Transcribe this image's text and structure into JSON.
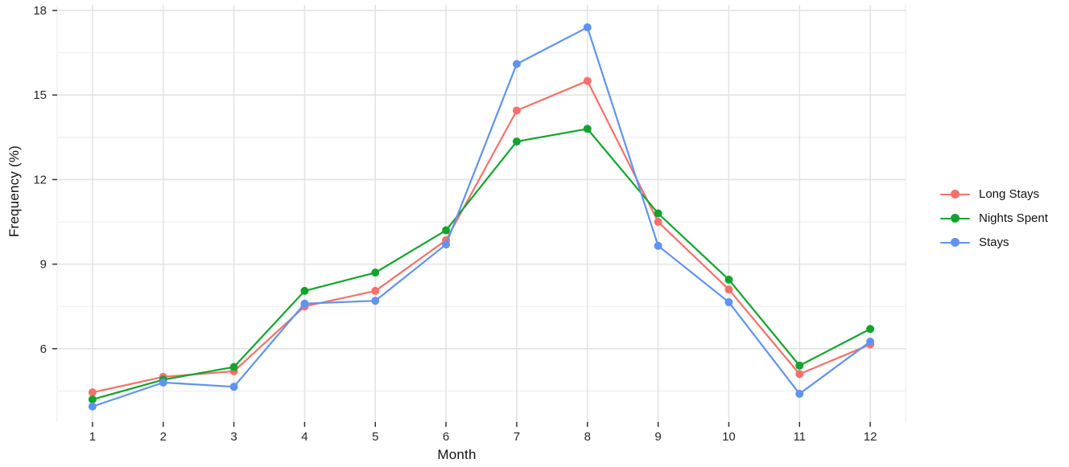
{
  "chart_data": {
    "type": "line",
    "title": "",
    "xlabel": "Month",
    "ylabel": "Frequency (%)",
    "x": [
      1,
      2,
      3,
      4,
      5,
      6,
      7,
      8,
      9,
      10,
      11,
      12
    ],
    "series": [
      {
        "name": "Long Stays",
        "color": "#F4716B",
        "values": [
          4.45,
          5.0,
          5.2,
          7.5,
          8.05,
          9.85,
          14.45,
          15.5,
          10.5,
          8.1,
          5.1,
          6.15
        ]
      },
      {
        "name": "Nights Spent",
        "color": "#12A42E",
        "values": [
          4.2,
          4.9,
          5.35,
          8.05,
          8.7,
          10.2,
          13.35,
          13.8,
          10.8,
          8.45,
          5.4,
          6.7
        ]
      },
      {
        "name": "Stays",
        "color": "#6093F0",
        "values": [
          3.95,
          4.8,
          4.65,
          7.6,
          7.7,
          9.7,
          16.1,
          17.4,
          9.65,
          7.65,
          4.4,
          6.25
        ]
      }
    ],
    "y_ticks": [
      6,
      9,
      12,
      15,
      18
    ],
    "y_minor_ticks": [
      4.5,
      7.5,
      10.5,
      13.5,
      16.5
    ],
    "ylim": [
      3.4,
      18.2
    ],
    "xlim": [
      0.5,
      12.5
    ],
    "grid": "on",
    "legend_position": "right"
  },
  "style": {
    "grid_major_color": "#e3e3e3",
    "grid_minor_color": "#efefef",
    "tick_color": "#333333",
    "tick_label_color": "#262626",
    "background": "#ffffff"
  }
}
